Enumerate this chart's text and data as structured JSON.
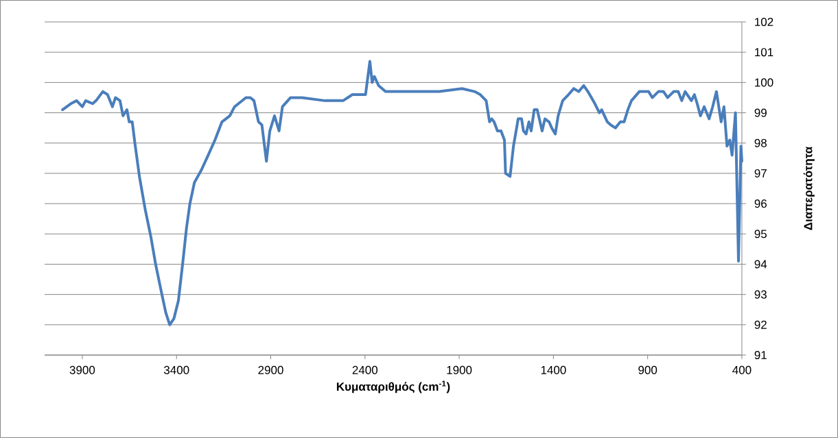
{
  "chart_data": {
    "type": "line",
    "xlabel": "Κυματαριθμός (cm$^{-1}$)",
    "ylabel": "Διαπερατότητα",
    "x": [
      4005,
      3961,
      3930,
      3900,
      3882,
      3845,
      3827,
      3791,
      3766,
      3740,
      3724,
      3700,
      3684,
      3663,
      3651,
      3635,
      3621,
      3597,
      3566,
      3536,
      3511,
      3481,
      3457,
      3436,
      3414,
      3390,
      3366,
      3347,
      3329,
      3305,
      3269,
      3232,
      3196,
      3159,
      3117,
      3092,
      3032,
      3008,
      2989,
      2965,
      2947,
      2923,
      2905,
      2880,
      2856,
      2838,
      2795,
      2734,
      2613,
      2516,
      2467,
      2397,
      2374,
      2362,
      2350,
      2328,
      2291,
      2188,
      2127,
      2079,
      2006,
      1885,
      1818,
      1788,
      1757,
      1739,
      1727,
      1715,
      1697,
      1678,
      1660,
      1654,
      1630,
      1612,
      1587,
      1569,
      1559,
      1545,
      1530,
      1518,
      1502,
      1486,
      1460,
      1445,
      1423,
      1409,
      1390,
      1375,
      1351,
      1320,
      1292,
      1266,
      1239,
      1217,
      1180,
      1156,
      1144,
      1114,
      1096,
      1071,
      1045,
      1025,
      1005,
      986,
      944,
      920,
      895,
      875,
      843,
      816,
      794,
      762,
      738,
      719,
      701,
      668,
      652,
      637,
      620,
      600,
      574,
      555,
      535,
      510,
      495,
      479,
      464,
      452,
      434,
      418,
      405,
      400
    ],
    "values": [
      99.1,
      99.3,
      99.4,
      99.2,
      99.4,
      99.3,
      99.4,
      99.7,
      99.6,
      99.2,
      99.5,
      99.4,
      98.9,
      99.1,
      98.7,
      98.7,
      98.0,
      96.9,
      95.8,
      94.9,
      94.0,
      93.1,
      92.4,
      92.0,
      92.2,
      92.8,
      94.1,
      95.2,
      96.0,
      96.7,
      97.1,
      97.6,
      98.1,
      98.7,
      98.9,
      99.2,
      99.5,
      99.5,
      99.4,
      98.7,
      98.6,
      97.4,
      98.4,
      98.9,
      98.4,
      99.2,
      99.5,
      99.5,
      99.4,
      99.4,
      99.6,
      99.6,
      100.7,
      100.0,
      100.2,
      99.9,
      99.7,
      99.7,
      99.7,
      99.7,
      99.7,
      99.8,
      99.7,
      99.6,
      99.4,
      98.7,
      98.8,
      98.7,
      98.4,
      98.4,
      98.1,
      97.0,
      96.9,
      97.9,
      98.8,
      98.8,
      98.4,
      98.3,
      98.7,
      98.4,
      99.1,
      99.1,
      98.4,
      98.8,
      98.7,
      98.5,
      98.3,
      98.9,
      99.4,
      99.6,
      99.8,
      99.7,
      99.9,
      99.7,
      99.3,
      99.0,
      99.1,
      98.7,
      98.6,
      98.5,
      98.7,
      98.7,
      99.1,
      99.4,
      99.7,
      99.7,
      99.7,
      99.5,
      99.7,
      99.7,
      99.5,
      99.7,
      99.7,
      99.4,
      99.7,
      99.4,
      99.6,
      99.3,
      98.9,
      99.2,
      98.8,
      99.2,
      99.7,
      98.7,
      99.2,
      97.9,
      98.1,
      97.6,
      99.0,
      94.1,
      97.9,
      97.4
    ],
    "color": "#4a7ebb",
    "xlim": [
      4100,
      400
    ],
    "ylim": [
      91,
      102
    ],
    "xticks": [
      3900,
      3400,
      2900,
      2400,
      1900,
      1400,
      900,
      400
    ],
    "yticks": [
      91,
      92,
      93,
      94,
      95,
      96,
      97,
      98,
      99,
      100,
      101,
      102
    ],
    "grid": "y",
    "marker": "none",
    "line_style": "solid"
  }
}
